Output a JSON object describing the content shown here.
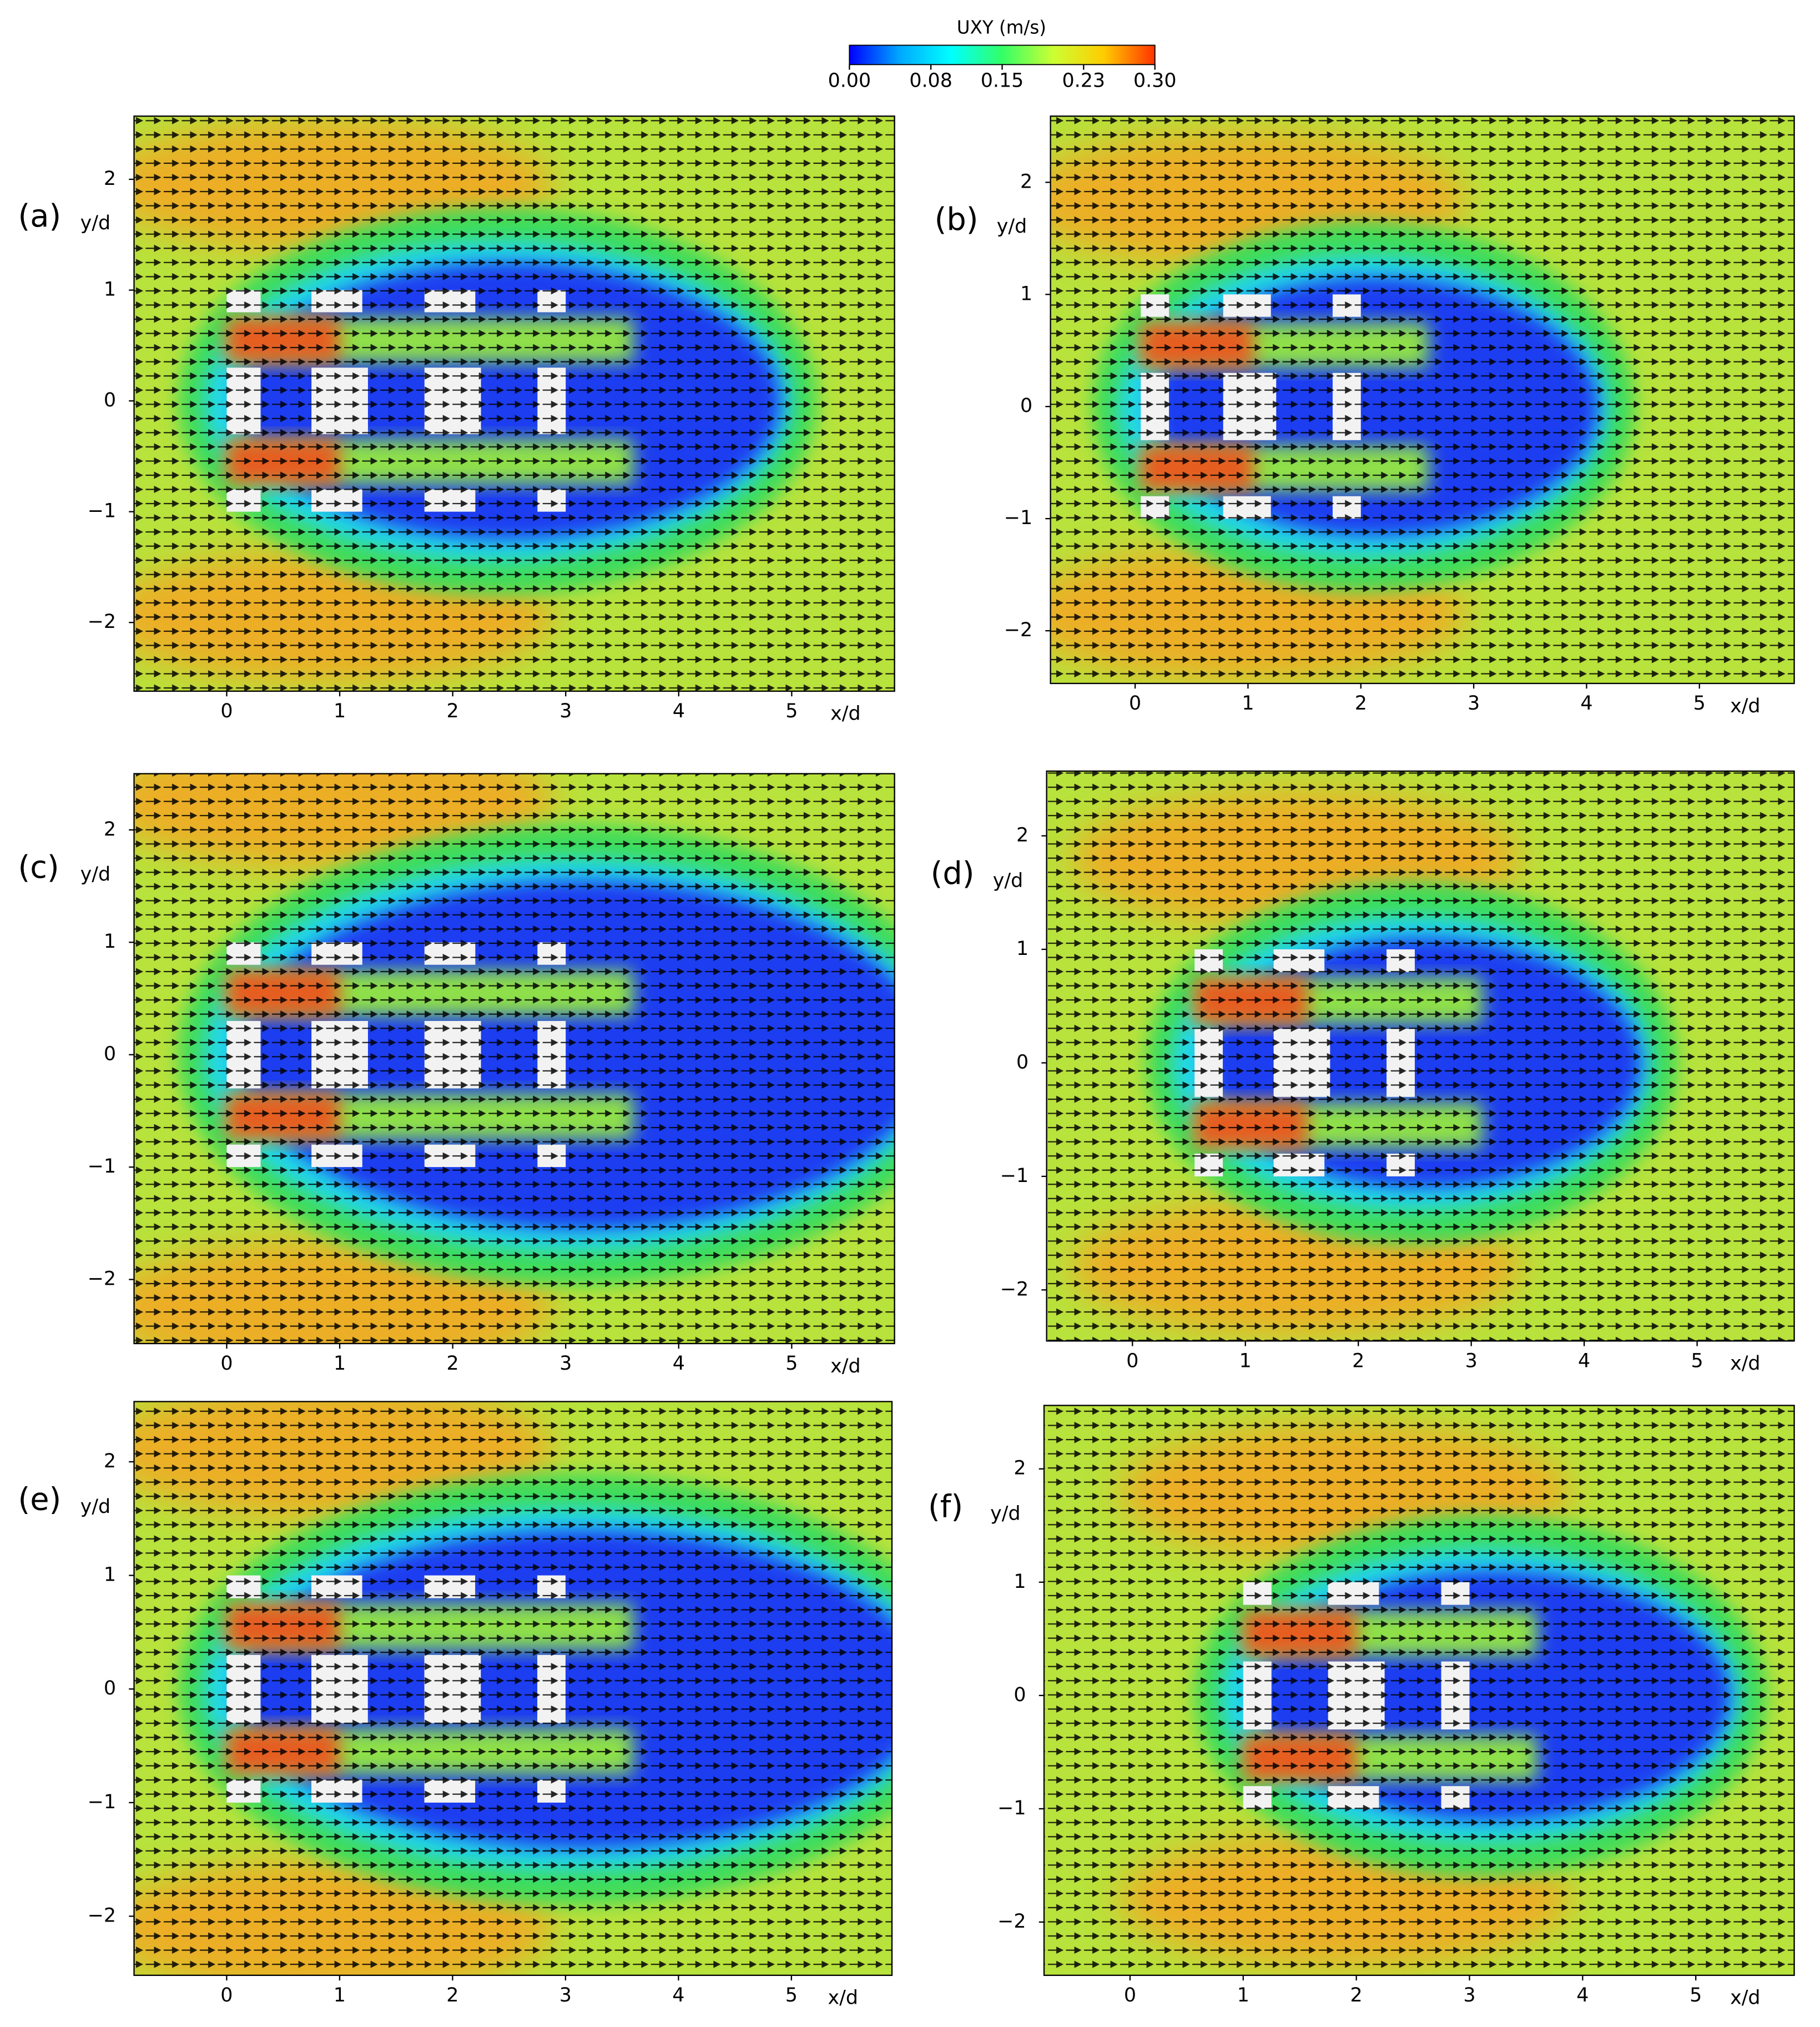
{
  "colorbar": {
    "title": "UXY (m/s)",
    "lim": [
      0,
      0.3
    ],
    "ticks": [
      {
        "value": 0,
        "label": "0.00"
      },
      0.08,
      0.15,
      0.23,
      {
        "value": 0.3,
        "label": "0.30"
      }
    ],
    "colors": [
      "#0000ff",
      "#00aaff",
      "#00ffff",
      "#33ff66",
      "#ccff33",
      "#ffcc00",
      "#ff3300"
    ]
  },
  "chart_data": [
    {
      "type": "vector-field",
      "label": "(a)",
      "xlabel": "x/d",
      "ylabel": "y/d",
      "xlim": [
        -0.82,
        5.91
      ],
      "ylim": [
        -2.62,
        2.57
      ],
      "xticks": [
        0,
        1,
        2,
        3,
        4,
        5
      ],
      "yticks": [
        {
          "value": -2,
          "label": "−2"
        },
        {
          "value": -1,
          "label": "−1"
        },
        0,
        1,
        2
      ]
    },
    {
      "type": "vector-field",
      "label": "(b)",
      "xlabel": "x/d",
      "ylabel": "y/d",
      "xlim": [
        -0.75,
        5.84
      ],
      "ylim": [
        -2.47,
        2.59
      ],
      "xticks": [
        0,
        1,
        2,
        3,
        4,
        5
      ],
      "yticks": [
        {
          "value": -2,
          "label": "−2"
        },
        {
          "value": -1,
          "label": "−1"
        },
        0,
        1,
        2
      ]
    },
    {
      "type": "vector-field",
      "label": "(c)",
      "xlabel": "x/d",
      "ylabel": "y/d",
      "xlim": [
        -0.82,
        5.91
      ],
      "ylim": [
        -2.57,
        2.5
      ],
      "xticks": [
        0,
        1,
        2,
        3,
        4,
        5
      ],
      "yticks": [
        {
          "value": -2,
          "label": "−2"
        },
        {
          "value": -1,
          "label": "−1"
        },
        0,
        1,
        2
      ]
    },
    {
      "type": "vector-field",
      "label": "(d)",
      "xlabel": "x/d",
      "ylabel": "y/d",
      "xlim": [
        -0.76,
        5.86
      ],
      "ylim": [
        -2.45,
        2.57
      ],
      "xticks": [
        0,
        1,
        2,
        3,
        4,
        5
      ],
      "yticks": [
        {
          "value": -2,
          "label": "−2"
        },
        {
          "value": -1,
          "label": "−1"
        },
        0,
        1,
        2
      ]
    },
    {
      "type": "vector-field",
      "label": "(e)",
      "xlabel": "x/d",
      "ylabel": "y/d",
      "xlim": [
        -0.82,
        5.89
      ],
      "ylim": [
        -2.52,
        2.53
      ],
      "xticks": [
        0,
        1,
        2,
        3,
        4,
        5
      ],
      "yticks": [
        {
          "value": -2,
          "label": "−2"
        },
        {
          "value": -1,
          "label": "−1"
        },
        0,
        1,
        2
      ]
    },
    {
      "type": "vector-field",
      "label": "(f)",
      "xlabel": "x/d",
      "ylabel": "y/d",
      "xlim": [
        -0.76,
        5.87
      ],
      "ylim": [
        -2.47,
        2.56
      ],
      "xticks": [
        0,
        1,
        2,
        3,
        4,
        5
      ],
      "yticks": [
        {
          "value": -2,
          "label": "−2"
        },
        {
          "value": -1,
          "label": "−1"
        },
        0,
        1,
        2
      ]
    }
  ]
}
